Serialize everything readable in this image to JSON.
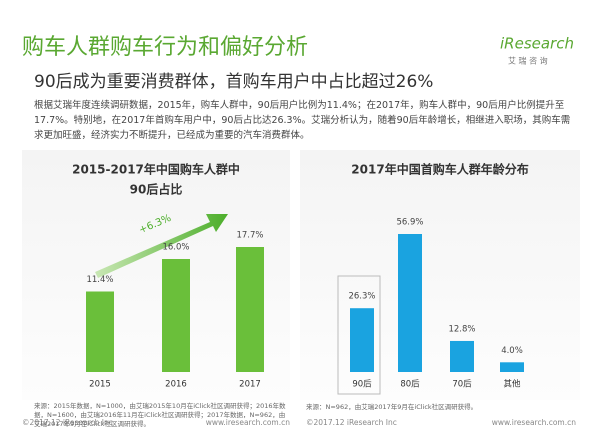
{
  "header": {
    "title": "购车人群购车行为和偏好分析",
    "subtitle": "90后成为重要消费群体，首购车用户中占比超过26%",
    "logo": "iResearch",
    "logo_sub": "艾 瑞 咨 询"
  },
  "paragraph": "根据艾瑞年度连续调研数据，2015年，购车人群中，90后用户比例为11.4%；在2017年，购车人群中，90后用户比例提升至17.7%。特别地，在2017年首购车用户中，90后占比达26.3%。艾瑞分析认为，随着90后年龄增长，相继进入职场，其购车需求更加旺盛，经济实力不断提升，已经成为重要的汽车消费群体。",
  "chart_data": [
    {
      "type": "bar",
      "title": [
        "2015-2017年中国购车人群中",
        "90后占比"
      ],
      "categories": [
        "2015",
        "2016",
        "2017"
      ],
      "values": [
        11.4,
        16.0,
        17.7
      ],
      "value_labels": [
        "11.4%",
        "16.0%",
        "17.7%"
      ],
      "color": "#6abf3a",
      "annotation": "+6.3%",
      "source": "来源：2015年数据，N=1000，由艾瑞2015年10月在iClick社区调研获得；2016年数据，N=1600，由艾瑞2016年11月在iClick社区调研获得；2017年数据，N=962，由艾瑞2017年9月在iClick社区调研获得。"
    },
    {
      "type": "bar",
      "title": [
        "2017年中国首购车人群年龄分布"
      ],
      "categories": [
        "90后",
        "80后",
        "70后",
        "其他"
      ],
      "values": [
        26.3,
        56.9,
        12.8,
        4.0
      ],
      "value_labels": [
        "26.3%",
        "56.9%",
        "12.8%",
        "4.0%"
      ],
      "color": "#1aa3e0",
      "source": "来源：N=962，由艾瑞2017年9月在iClick社区调研获得。"
    }
  ],
  "footer": {
    "copyright": "©2017.12 iResearch Inc",
    "url": "www.iresearch.com.cn"
  }
}
